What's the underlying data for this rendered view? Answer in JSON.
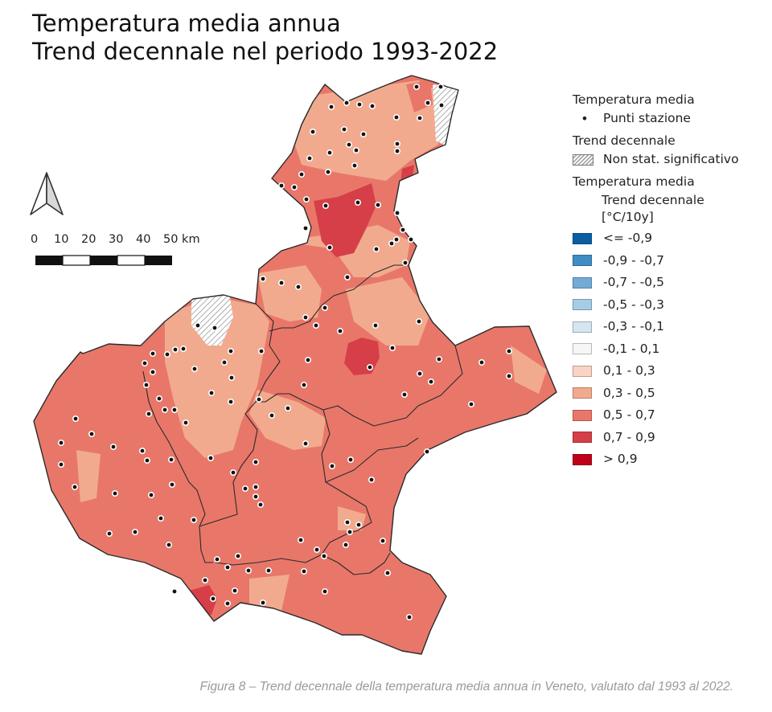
{
  "title_line1": "Temperatura media annua",
  "title_line2": "Trend decennale nel periodo 1993-2022",
  "north_arrow": "north-arrow-icon",
  "scale_bar": {
    "labels": [
      "0",
      "10",
      "20",
      "30",
      "40",
      "50 km"
    ]
  },
  "legend": {
    "group1_title": "Temperatura media",
    "stations_label": "Punti stazione",
    "group2_title": "Trend decennale",
    "hatch_label": "Non stat. significativo",
    "group3_title": "Temperatura media",
    "group3_sub1": "Trend decennale",
    "group3_sub2": "[°C/10y]",
    "classes": [
      {
        "label": "<= -0,9",
        "color": "#0a5fa4"
      },
      {
        "label": "-0,9 - -0,7",
        "color": "#3f8dc4"
      },
      {
        "label": "-0,7 - -0,5",
        "color": "#72abd6"
      },
      {
        "label": "-0,5 - -0,3",
        "color": "#a6cde6"
      },
      {
        "label": "-0,3 - -0,1",
        "color": "#d3e6f2"
      },
      {
        "label": "-0,1 - 0,1",
        "color": "#f6f6f6"
      },
      {
        "label": "0,1 - 0,3",
        "color": "#f9d3c4"
      },
      {
        "label": "0,3 - 0,5",
        "color": "#f2aa8e"
      },
      {
        "label": "0,5 - 0,7",
        "color": "#e8776a"
      },
      {
        "label": "0,7 - 0,9",
        "color": "#d63f48"
      },
      {
        "label": "> 0,9",
        "color": "#c00018"
      }
    ]
  },
  "caption": "Figura 8 – Trend decennale della temperatura media annua in Veneto, valutato dal 1993 al 2022."
}
